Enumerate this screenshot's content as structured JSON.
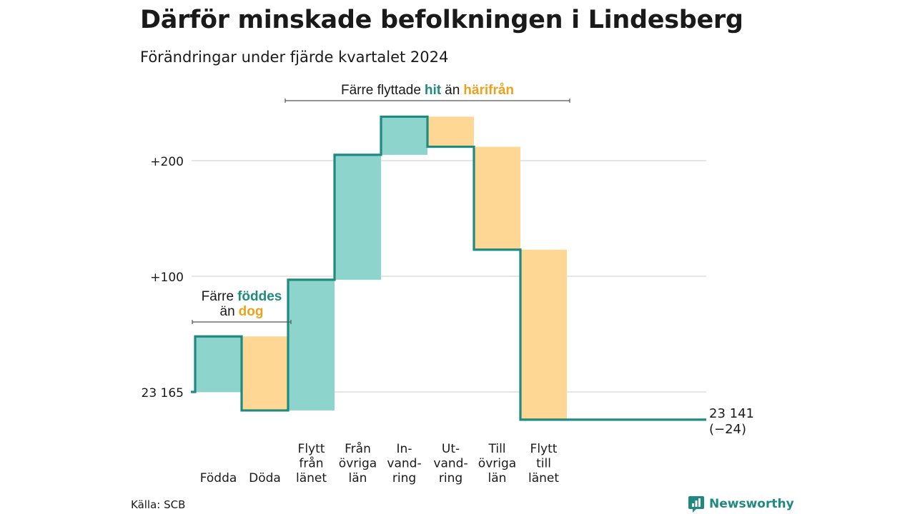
{
  "title": "Därför minskade befolkningen i Lindesberg",
  "subtitle": "Förändringar under fjärde kvartalet 2024",
  "source": "Källa: SCB",
  "brand": {
    "name": "Newsworthy",
    "icon": "newsworthy-logo-icon"
  },
  "colors": {
    "inflow": "#8dd5cc",
    "outflow": "#fdd793",
    "line": "#1f8a80",
    "inflow_text": "#1f8a80",
    "outflow_text": "#eba21f",
    "grid": "#dddddd"
  },
  "chart_data": {
    "type": "waterfall",
    "start_value": 23165,
    "ylim": [
      -24,
      240
    ],
    "y_ticks": [
      {
        "value": 0,
        "label": "23 165"
      },
      {
        "value": 100,
        "label": "+100"
      },
      {
        "value": 200,
        "label": "+200"
      }
    ],
    "steps": [
      {
        "id": "fodda",
        "label_lines": [
          "Födda"
        ],
        "direction": "in",
        "change": 48
      },
      {
        "id": "doda",
        "label_lines": [
          "Döda"
        ],
        "direction": "out",
        "change": -64
      },
      {
        "id": "flytt-fran-lanet",
        "label_lines": [
          "Flytt",
          "från",
          "länet"
        ],
        "direction": "in",
        "change": 113
      },
      {
        "id": "fran-ovriga-lan",
        "label_lines": [
          "Från",
          "övriga",
          "län"
        ],
        "direction": "in",
        "change": 108
      },
      {
        "id": "invandring",
        "label_lines": [
          "In-",
          "vand-",
          "ring"
        ],
        "direction": "in",
        "change": 33
      },
      {
        "id": "utvandring",
        "label_lines": [
          "Ut-",
          "vand-",
          "ring"
        ],
        "direction": "out",
        "change": -26
      },
      {
        "id": "till-ovriga-lan",
        "label_lines": [
          "Till",
          "övriga",
          "län"
        ],
        "direction": "out",
        "change": -89
      },
      {
        "id": "flytt-till-lanet",
        "label_lines": [
          "Flytt",
          "till",
          "länet"
        ],
        "direction": "out",
        "change": -147
      }
    ],
    "end": {
      "value_label": "23 141",
      "change_label": "(−24)"
    },
    "annotations": [
      {
        "id": "births-deaths",
        "covers_steps": [
          "fodda",
          "doda"
        ],
        "parts": [
          {
            "text": "Färre",
            "style": "plain"
          },
          {
            "text": "föddes",
            "style": "inflow",
            "line_break_after": true
          },
          {
            "text": "än",
            "style": "plain"
          },
          {
            "text": "dog",
            "style": "outflow"
          }
        ]
      },
      {
        "id": "migration",
        "covers_steps": [
          "flytt-fran-lanet",
          "flytt-till-lanet"
        ],
        "parts": [
          {
            "text": "Färre flyttade",
            "style": "plain"
          },
          {
            "text": "hit",
            "style": "inflow"
          },
          {
            "text": "än",
            "style": "plain"
          },
          {
            "text": "härifrån",
            "style": "outflow"
          }
        ]
      }
    ]
  }
}
